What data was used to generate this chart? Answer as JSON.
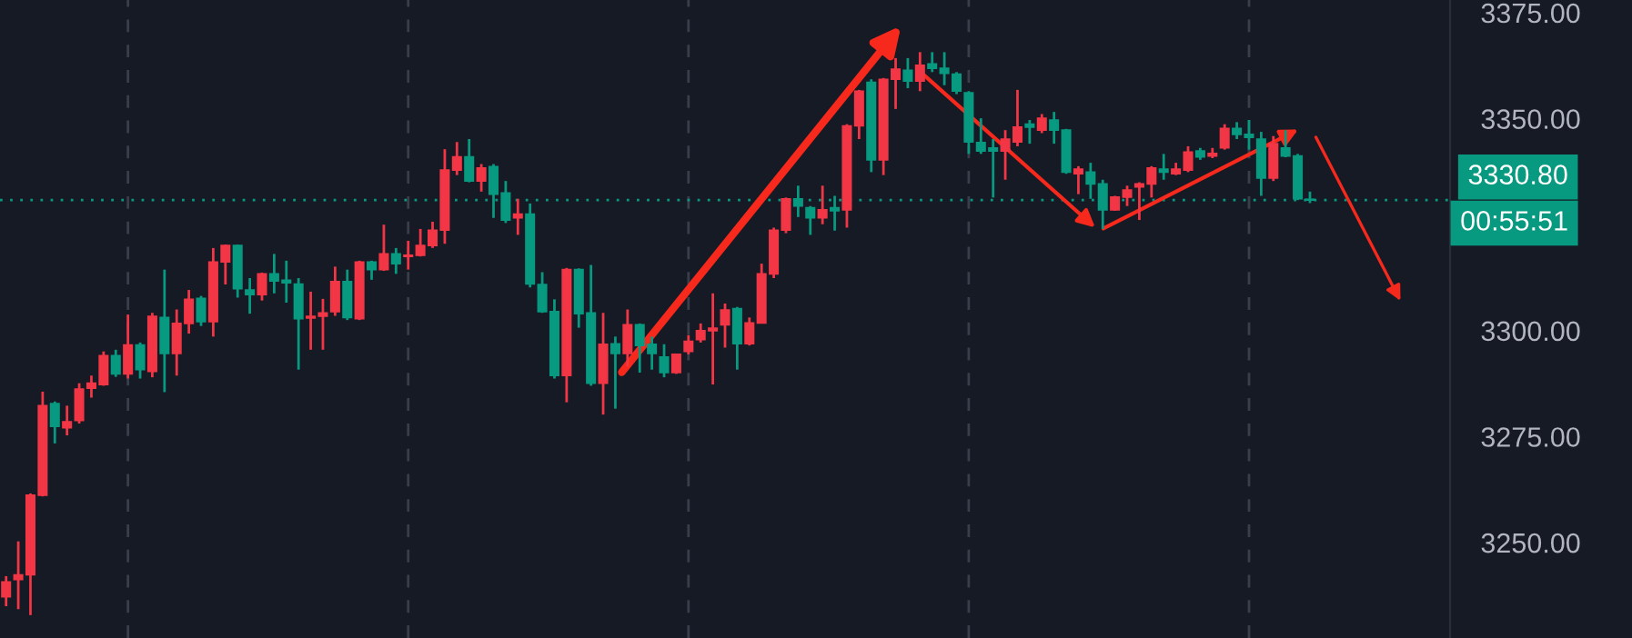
{
  "chart_data": {
    "type": "candlestick",
    "categories": [
      null,
      null,
      null,
      null,
      null,
      null,
      null,
      null,
      null,
      null,
      null,
      null,
      null,
      null,
      null,
      null,
      null,
      null,
      null,
      null,
      null,
      null,
      null,
      null,
      null,
      null,
      null,
      null,
      null,
      null,
      null,
      null,
      null,
      null,
      null,
      null,
      null,
      null,
      null,
      null,
      null,
      null,
      null,
      null,
      null,
      null,
      null,
      null,
      null,
      null,
      null,
      null,
      null,
      null,
      null,
      null,
      null,
      null,
      null,
      null,
      null,
      null,
      null,
      null,
      null,
      null,
      null,
      null,
      null,
      null,
      null,
      null,
      null,
      null,
      null,
      null,
      null,
      null,
      null,
      null,
      null,
      null,
      null,
      null,
      null,
      null,
      null,
      null,
      null,
      null,
      null,
      null,
      null,
      null,
      null,
      null,
      null,
      null,
      null,
      null,
      null,
      null,
      null,
      null,
      null,
      null,
      null,
      null,
      null,
      null,
      null,
      null,
      null,
      null,
      null,
      null,
      null,
      null,
      null
    ],
    "ohlc": [
      [
        3237.2,
        3242.1,
        3235.0,
        3240.7
      ],
      [
        3241.3,
        3250.3,
        3234.3,
        3242.4
      ],
      [
        3242.4,
        3261.6,
        3232.9,
        3261.2
      ],
      [
        3261.2,
        3285.6,
        3260.9,
        3282.3
      ],
      [
        3282.8,
        3283.3,
        3273.4,
        3277.4
      ],
      [
        3277.1,
        3282.3,
        3275.3,
        3278.5
      ],
      [
        3278.8,
        3287.6,
        3278.1,
        3286.2
      ],
      [
        3286.4,
        3289.4,
        3284.2,
        3287.6
      ],
      [
        3287.3,
        3295.1,
        3287.0,
        3294.1
      ],
      [
        3294.1,
        3295.5,
        3289.1,
        3289.8
      ],
      [
        3289.8,
        3303.8,
        3288.7,
        3296.6
      ],
      [
        3296.6,
        3297.2,
        3288.7,
        3290.8
      ],
      [
        3290.4,
        3304.2,
        3289.0,
        3303.4
      ],
      [
        3303.1,
        3314.4,
        3285.5,
        3294.6
      ],
      [
        3294.6,
        3305.0,
        3289.4,
        3301.7
      ],
      [
        3301.7,
        3309.6,
        3299.3,
        3307.4
      ],
      [
        3307.6,
        3308.2,
        3301.1,
        3302.1
      ],
      [
        3302.1,
        3319.5,
        3298.6,
        3316.2
      ],
      [
        3316.2,
        3320.3,
        3310.9,
        3320.1
      ],
      [
        3320.1,
        3320.3,
        3307.8,
        3309.9
      ],
      [
        3309.6,
        3312.4,
        3304.0,
        3308.5
      ],
      [
        3308.5,
        3313.7,
        3307.1,
        3313.4
      ],
      [
        3313.4,
        3318.1,
        3308.8,
        3311.7
      ],
      [
        3311.9,
        3316.5,
        3306.6,
        3311.3
      ],
      [
        3311.0,
        3312.4,
        3290.8,
        3302.8
      ],
      [
        3303.0,
        3309.2,
        3295.5,
        3303.4
      ],
      [
        3303.4,
        3307.5,
        3295.5,
        3304.2
      ],
      [
        3304.5,
        3315.1,
        3303.5,
        3311.6
      ],
      [
        3311.6,
        3314.4,
        3302.5,
        3303.1
      ],
      [
        3302.8,
        3316.5,
        3302.5,
        3316.2
      ],
      [
        3316.2,
        3316.5,
        3312.0,
        3314.4
      ],
      [
        3314.4,
        3325.0,
        3314.1,
        3318.1
      ],
      [
        3318.1,
        3319.5,
        3313.4,
        3315.8
      ],
      [
        3317.5,
        3321.2,
        3314.4,
        3317.8
      ],
      [
        3317.8,
        3324.0,
        3317.5,
        3320.1
      ],
      [
        3320.1,
        3325.7,
        3319.5,
        3323.7
      ],
      [
        3323.7,
        3342.8,
        3320.5,
        3337.9
      ],
      [
        3337.9,
        3344.5,
        3336.7,
        3341.0
      ],
      [
        3341.0,
        3345.2,
        3335.0,
        3335.3
      ],
      [
        3335.3,
        3339.3,
        3332.8,
        3338.4
      ],
      [
        3338.7,
        3339.3,
        3326.6,
        3332.2
      ],
      [
        3332.5,
        3335.3,
        3325.4,
        3326.1
      ],
      [
        3326.6,
        3331.1,
        3322.6,
        3327.5
      ],
      [
        3327.5,
        3330.0,
        3310.2,
        3311.0
      ],
      [
        3310.9,
        3313.8,
        3304.2,
        3304.5
      ],
      [
        3304.5,
        3307.4,
        3288.7,
        3289.4
      ],
      [
        3289.4,
        3314.8,
        3283.1,
        3314.4
      ],
      [
        3314.4,
        3314.7,
        3300.7,
        3304.0
      ],
      [
        3304.2,
        3315.5,
        3287.0,
        3287.6
      ],
      [
        3287.6,
        3304.2,
        3280.2,
        3296.8
      ],
      [
        3296.9,
        3298.6,
        3281.6,
        3294.6
      ],
      [
        3294.6,
        3305.0,
        3291.5,
        3301.4
      ],
      [
        3301.4,
        3301.7,
        3290.1,
        3296.5
      ],
      [
        3296.8,
        3298.6,
        3290.8,
        3294.6
      ],
      [
        3293.8,
        3296.8,
        3289.0,
        3290.1
      ],
      [
        3290.1,
        3294.6,
        3289.8,
        3294.4
      ],
      [
        3295.1,
        3298.9,
        3294.4,
        3297.5
      ],
      [
        3297.9,
        3301.7,
        3297.2,
        3300.0
      ],
      [
        3300.0,
        3308.8,
        3287.3,
        3300.6
      ],
      [
        3301.4,
        3306.4,
        3296.0,
        3304.9
      ],
      [
        3305.2,
        3305.6,
        3290.8,
        3296.9
      ],
      [
        3296.9,
        3303.1,
        3296.5,
        3301.8
      ],
      [
        3301.8,
        3315.8,
        3301.7,
        3313.4
      ],
      [
        3313.4,
        3324.3,
        3312.4,
        3323.7
      ],
      [
        3323.7,
        3331.4,
        3323.0,
        3331.1
      ],
      [
        3331.1,
        3334.2,
        3326.8,
        3329.4
      ],
      [
        3329.0,
        3329.4,
        3322.6,
        3326.6
      ],
      [
        3326.6,
        3334.2,
        3325.1,
        3328.5
      ],
      [
        3329.0,
        3331.8,
        3323.6,
        3328.3
      ],
      [
        3328.5,
        3348.7,
        3324.3,
        3348.3
      ],
      [
        3348.3,
        3356.8,
        3345.2,
        3356.5
      ],
      [
        3358.6,
        3359.3,
        3337.4,
        3340.3
      ],
      [
        3340.3,
        3359.6,
        3336.7,
        3359.3
      ],
      [
        3359.3,
        3364.3,
        3352.3,
        3361.7
      ],
      [
        3361.4,
        3364.3,
        3357.2,
        3358.9
      ],
      [
        3358.9,
        3365.7,
        3356.5,
        3362.6
      ],
      [
        3362.9,
        3365.7,
        3361.0,
        3361.9
      ],
      [
        3361.9,
        3365.7,
        3357.9,
        3360.7
      ],
      [
        3360.5,
        3361.0,
        3355.8,
        3356.5
      ],
      [
        3356.1,
        3356.5,
        3341.7,
        3344.5
      ],
      [
        3344.4,
        3350.1,
        3341.7,
        3342.4
      ],
      [
        3343.1,
        3345.2,
        3331.4,
        3342.4
      ],
      [
        3342.4,
        3347.3,
        3335.6,
        3345.2
      ],
      [
        3344.5,
        3356.8,
        3343.5,
        3348.0
      ],
      [
        3348.7,
        3349.7,
        3344.1,
        3348.0
      ],
      [
        3347.3,
        3351.1,
        3346.6,
        3350.1
      ],
      [
        3349.7,
        3351.6,
        3344.1,
        3347.3
      ],
      [
        3347.3,
        3347.6,
        3337.0,
        3337.4
      ],
      [
        3337.0,
        3338.8,
        3332.2,
        3338.1
      ],
      [
        3337.4,
        3339.6,
        3331.1,
        3334.6
      ],
      [
        3334.6,
        3335.6,
        3324.0,
        3328.5
      ],
      [
        3328.5,
        3331.8,
        3328.3,
        3331.5
      ],
      [
        3331.5,
        3334.2,
        3329.4,
        3333.2
      ],
      [
        3333.9,
        3335.0,
        3326.1,
        3334.6
      ],
      [
        3334.6,
        3338.8,
        3331.4,
        3338.4
      ],
      [
        3338.1,
        3341.7,
        3335.6,
        3337.4
      ],
      [
        3337.0,
        3339.6,
        3336.7,
        3338.1
      ],
      [
        3337.9,
        3343.5,
        3337.4,
        3342.1
      ],
      [
        3342.4,
        3343.1,
        3340.3,
        3341.0
      ],
      [
        3341.2,
        3343.1,
        3340.7,
        3341.8
      ],
      [
        3343.1,
        3348.7,
        3342.7,
        3347.7
      ],
      [
        3347.7,
        3349.2,
        3345.2,
        3346.3
      ],
      [
        3346.3,
        3349.7,
        3342.7,
        3345.6
      ],
      [
        3345.2,
        3346.9,
        3331.8,
        3336.0
      ],
      [
        3336.0,
        3345.9,
        3335.3,
        3344.1
      ],
      [
        3343.1,
        3347.3,
        3340.9,
        3341.2
      ],
      [
        3341.2,
        3341.7,
        3330.8,
        3331.1
      ],
      [
        3331.0,
        3332.8,
        3330.1,
        3330.8
      ],
      null,
      null,
      null,
      null,
      null,
      null,
      null,
      null,
      null,
      null,
      null
    ],
    "colors": [
      "#f23645",
      "#f23645",
      "#f23645",
      "#f23645",
      "#089981",
      "#f23645",
      "#f23645",
      "#f23645",
      "#f23645",
      "#089981",
      "#f23645",
      "#089981",
      "#f23645",
      "#089981",
      "#f23645",
      "#f23645",
      "#089981",
      "#f23645",
      "#f23645",
      "#089981",
      "#089981",
      "#f23645",
      "#089981",
      "#089981",
      "#089981",
      "#f23645",
      "#f23645",
      "#f23645",
      "#089981",
      "#f23645",
      "#089981",
      "#f23645",
      "#089981",
      "#f23645",
      "#f23645",
      "#f23645",
      "#f23645",
      "#f23645",
      "#089981",
      "#f23645",
      "#089981",
      "#089981",
      "#f23645",
      "#089981",
      "#089981",
      "#089981",
      "#f23645",
      "#089981",
      "#089981",
      "#f23645",
      "#089981",
      "#f23645",
      "#089981",
      "#089981",
      "#089981",
      "#f23645",
      "#f23645",
      "#f23645",
      "#f23645",
      "#f23645",
      "#089981",
      "#f23645",
      "#f23645",
      "#f23645",
      "#f23645",
      "#089981",
      "#089981",
      "#f23645",
      "#089981",
      "#f23645",
      "#f23645",
      "#089981",
      "#f23645",
      "#f23645",
      "#089981",
      "#f23645",
      "#089981",
      "#089981",
      "#089981",
      "#089981",
      "#089981",
      "#089981",
      "#f23645",
      "#f23645",
      "#089981",
      "#f23645",
      "#089981",
      "#089981",
      "#f23645",
      "#089981",
      "#089981",
      "#f23645",
      "#f23645",
      "#f23645",
      "#f23645",
      "#089981",
      "#f23645",
      "#f23645",
      "#089981",
      "#f23645",
      "#f23645",
      "#089981",
      "#089981",
      "#089981",
      "#f23645",
      "#089981",
      "#089981",
      "#089981",
      null,
      null,
      null,
      null,
      null,
      null,
      null,
      null,
      null,
      null,
      null
    ],
    "ylim": [
      3227.5,
      3378
    ],
    "yticks": [
      {
        "value": 3250,
        "label": "3250.00"
      },
      {
        "value": 3275,
        "label": "3275.00"
      },
      {
        "value": 3300,
        "label": "3300.00"
      },
      {
        "value": 3350,
        "label": "3350.00"
      },
      {
        "value": 3375,
        "label": "3375.00"
      }
    ],
    "tick_labels": "y",
    "grid": "x",
    "ref_lines": [
      {
        "axis": "y",
        "value": 3330.8,
        "label": "3330.80",
        "color": "#089981",
        "line_style": "dotted"
      }
    ],
    "annotations": [
      "00:55:51"
    ]
  }
}
